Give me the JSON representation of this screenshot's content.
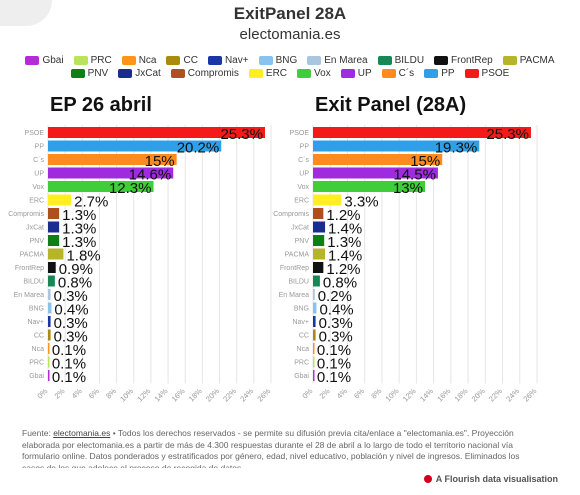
{
  "header": {
    "title": "ExitPanel 28A",
    "subtitle": "electomania.es"
  },
  "legend": [
    {
      "label": "Gbai",
      "color": "#b52cd6"
    },
    {
      "label": "PRC",
      "color": "#b9e35b"
    },
    {
      "label": "Nca",
      "color": "#ff9418"
    },
    {
      "label": "CC",
      "color": "#a98b0e"
    },
    {
      "label": "Nav+",
      "color": "#1a35a7"
    },
    {
      "label": "BNG",
      "color": "#88c2ee"
    },
    {
      "label": "En Marea",
      "color": "#a9c6de"
    },
    {
      "label": "BILDU",
      "color": "#168755"
    },
    {
      "label": "FrontRep",
      "color": "#111111"
    },
    {
      "label": "PACMA",
      "color": "#b6b529"
    },
    {
      "label": "PNV",
      "color": "#0e7e15"
    },
    {
      "label": "JxCat",
      "color": "#1a2d8f"
    },
    {
      "label": "Compromis",
      "color": "#ad4f1e"
    },
    {
      "label": "ERC",
      "color": "#ffee22"
    },
    {
      "label": "Vox",
      "color": "#3fcd3a"
    },
    {
      "label": "UP",
      "color": "#9f2adf"
    },
    {
      "label": "C´s",
      "color": "#ff8b1f"
    },
    {
      "label": "PP",
      "color": "#2fa0e8"
    },
    {
      "label": "PSOE",
      "color": "#f51a1a"
    }
  ],
  "chart_data": [
    {
      "type": "bar",
      "orientation": "horizontal",
      "title": "EP 26 abril",
      "categories": [
        "PSOE",
        "PP",
        "C´s",
        "UP",
        "Vox",
        "ERC",
        "Compromis",
        "JxCat",
        "PNV",
        "PACMA",
        "FrontRep",
        "BILDU",
        "En Marea",
        "BNG",
        "Nav+",
        "CC",
        "Nca",
        "PRC",
        "Gbai"
      ],
      "values": [
        25.3,
        20.2,
        15,
        14.6,
        12.3,
        2.7,
        1.3,
        1.3,
        1.3,
        1.8,
        0.9,
        0.8,
        0.3,
        0.4,
        0.3,
        0.3,
        0.1,
        0.1,
        0.1
      ],
      "value_labels": [
        "25.3%",
        "20.2%",
        "15%",
        "14.6%",
        "12.3%",
        "2.7%",
        "1.3%",
        "1.3%",
        "1.3%",
        "1.8%",
        "0.9%",
        "0.8%",
        "0.3%",
        "0.4%",
        "0.3%",
        "0.3%",
        "0.1%",
        "0.1%",
        "0.1%"
      ],
      "xlim": [
        0,
        26
      ],
      "xticks": [
        "0%",
        "2%",
        "4%",
        "6%",
        "8%",
        "10%",
        "12%",
        "14%",
        "16%",
        "18%",
        "20%",
        "22%",
        "24%",
        "26%"
      ],
      "grid": true
    },
    {
      "type": "bar",
      "orientation": "horizontal",
      "title": "Exit Panel (28A)",
      "categories": [
        "PSOE",
        "PP",
        "C´s",
        "UP",
        "Vox",
        "ERC",
        "Compromis",
        "JxCat",
        "PNV",
        "PACMA",
        "FrontRep",
        "BILDU",
        "En Marea",
        "BNG",
        "Nav+",
        "CC",
        "Nca",
        "PRC",
        "Gbai"
      ],
      "values": [
        25.3,
        19.3,
        15,
        14.5,
        13,
        3.3,
        1.2,
        1.4,
        1.3,
        1.4,
        1.2,
        0.8,
        0.2,
        0.4,
        0.3,
        0.3,
        0.1,
        0.1,
        0.1
      ],
      "value_labels": [
        "25.3%",
        "19.3%",
        "15%",
        "14.5%",
        "13%",
        "3.3%",
        "1.2%",
        "1.4%",
        "1.3%",
        "1.4%",
        "1.2%",
        "0.8%",
        "0.2%",
        "0.4%",
        "0.3%",
        "0.3%",
        "0.1%",
        "0.1%",
        "0.1%"
      ],
      "xlim": [
        0,
        26
      ],
      "xticks": [
        "0%",
        "2%",
        "4%",
        "6%",
        "8%",
        "10%",
        "12%",
        "14%",
        "16%",
        "18%",
        "20%",
        "22%",
        "24%",
        "26%"
      ],
      "grid": true
    }
  ],
  "footer": {
    "prefix": "Fuente: ",
    "link_text": "electomania.es",
    "text": " • Todos los derechos reservados - se permite su difusión previa cita/enlace a \"electomania.es\". Proyección elaborada por electomania.es a partir de más de 4.300 respuestas durante el 28 de abril a lo largo de todo el territorio nacional vía formulario online. Datos ponderados y estratificados por género, edad, nivel educativo, población y nivel de ingresos. Eliminados los casos de los que adolece el proceso de recogida de datos.",
    "credit": "A Flourish data visualisation"
  }
}
